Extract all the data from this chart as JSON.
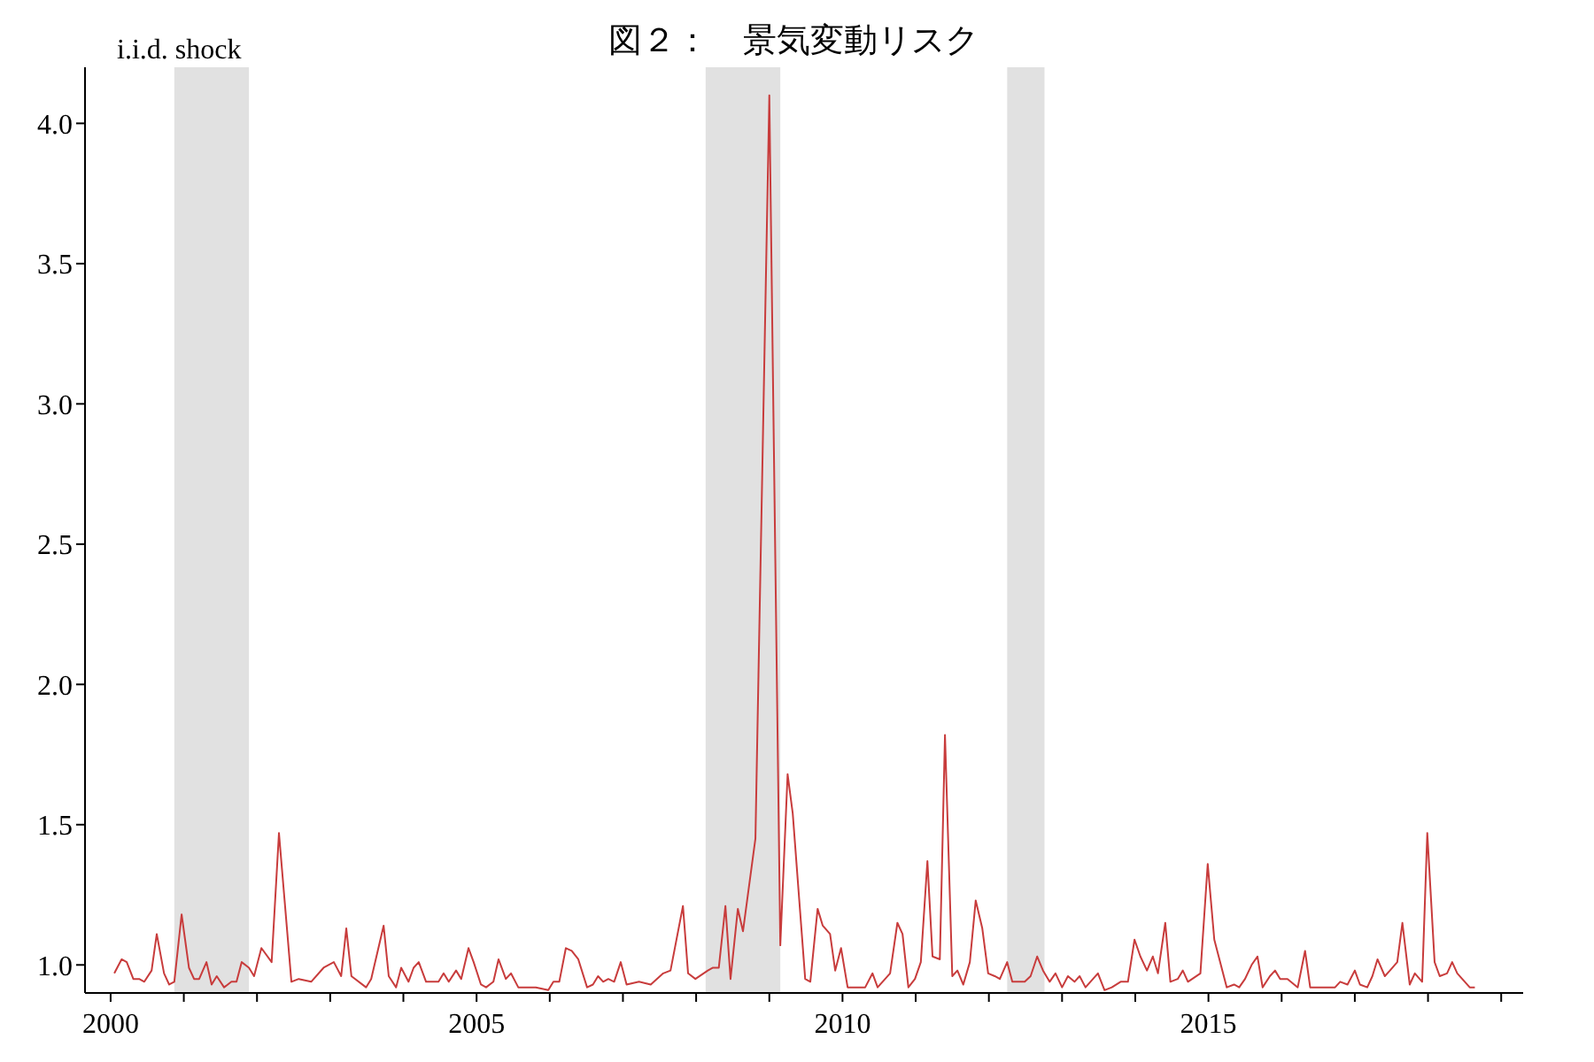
{
  "chart_data": {
    "type": "line",
    "title": "図２：　景気変動リスク",
    "ylabel": "i.i.d. shock",
    "xlim": [
      1999.65,
      2019.3
    ],
    "xticks": [
      2000,
      {
        "value": 2001,
        "label": null
      },
      {
        "value": 2002,
        "label": null
      },
      {
        "value": 2003,
        "label": null
      },
      {
        "value": 2004,
        "label": null
      },
      2005,
      {
        "value": 2006,
        "label": null
      },
      {
        "value": 2007,
        "label": null
      },
      {
        "value": 2008,
        "label": null
      },
      {
        "value": 2009,
        "label": null
      },
      2010,
      {
        "value": 2011,
        "label": null
      },
      {
        "value": 2012,
        "label": null
      },
      {
        "value": 2013,
        "label": null
      },
      {
        "value": 2014,
        "label": null
      },
      2015,
      {
        "value": 2016,
        "label": null
      },
      {
        "value": 2017,
        "label": null
      },
      {
        "value": 2018,
        "label": null
      },
      {
        "value": 2019,
        "label": null
      }
    ],
    "ylim": [
      0.9,
      4.2
    ],
    "yticks": [
      {
        "value": 1,
        "label": "1.0"
      },
      {
        "value": 1.5,
        "label": "1.5"
      },
      {
        "value": 2,
        "label": "2.0"
      },
      {
        "value": 2.5,
        "label": "2.5"
      },
      {
        "value": 3,
        "label": "3.0"
      },
      {
        "value": 3.5,
        "label": "3.5"
      },
      {
        "value": 4,
        "label": "4.0"
      }
    ],
    "grid": false,
    "legend": false,
    "marker": "none",
    "line_style": "solid",
    "bands": [
      {
        "axis": "x",
        "from": 2000.87,
        "to": 2001.89,
        "color": "#d9d9d9"
      },
      {
        "axis": "x",
        "from": 2008.13,
        "to": 2009.15,
        "color": "#d9d9d9"
      },
      {
        "axis": "x",
        "from": 2012.25,
        "to": 2012.76,
        "color": "#d9d9d9"
      }
    ],
    "x": [
      2000.05,
      2000.15,
      2000.22,
      2000.31,
      2000.39,
      2000.46,
      2000.56,
      2000.63,
      2000.73,
      2000.8,
      2000.87,
      2000.97,
      2001.07,
      2001.14,
      2001.21,
      2001.31,
      2001.38,
      2001.45,
      2001.55,
      2001.65,
      2001.72,
      2001.79,
      2001.89,
      2001.96,
      2002.06,
      2002.2,
      2002.3,
      2002.47,
      2002.57,
      2002.74,
      2002.91,
      2003.05,
      2003.15,
      2003.22,
      2003.29,
      2003.49,
      2003.56,
      2003.73,
      2003.8,
      2003.9,
      2003.97,
      2004.07,
      2004.14,
      2004.21,
      2004.31,
      2004.48,
      2004.55,
      2004.62,
      2004.72,
      2004.79,
      2004.89,
      2004.96,
      2005.06,
      2005.13,
      2005.23,
      2005.3,
      2005.4,
      2005.47,
      2005.57,
      2005.81,
      2005.98,
      2006.05,
      2006.13,
      2006.22,
      2006.3,
      2006.39,
      2006.51,
      2006.59,
      2006.66,
      2006.73,
      2006.8,
      2006.88,
      2006.97,
      2007.05,
      2007.22,
      2007.38,
      2007.55,
      2007.65,
      2007.82,
      2007.89,
      2007.99,
      2008.16,
      2008.23,
      2008.31,
      2008.4,
      2008.47,
      2008.57,
      2008.64,
      2008.81,
      2009.0,
      2009.15,
      2009.25,
      2009.32,
      2009.49,
      2009.56,
      2009.66,
      2009.73,
      2009.83,
      2009.9,
      2009.98,
      2010.07,
      2010.24,
      2010.31,
      2010.41,
      2010.48,
      2010.65,
      2010.75,
      2010.82,
      2010.9,
      2010.99,
      2011.07,
      2011.16,
      2011.23,
      2011.33,
      2011.4,
      2011.5,
      2011.57,
      2011.65,
      2011.74,
      2011.82,
      2011.91,
      2011.99,
      2012.08,
      2012.15,
      2012.25,
      2012.32,
      2012.49,
      2012.57,
      2012.66,
      2012.74,
      2012.83,
      2012.91,
      2013.0,
      2013.08,
      2013.17,
      2013.24,
      2013.32,
      2013.49,
      2013.58,
      2013.68,
      2013.8,
      2013.9,
      2013.99,
      2014.07,
      2014.16,
      2014.24,
      2014.31,
      2014.41,
      2014.48,
      2014.58,
      2014.65,
      2014.72,
      2014.89,
      2014.99,
      2015.08,
      2015.25,
      2015.35,
      2015.42,
      2015.5,
      2015.59,
      2015.67,
      2015.74,
      2015.84,
      2015.91,
      2015.98,
      2016.08,
      2016.22,
      2016.32,
      2016.39,
      2016.49,
      2016.73,
      2016.8,
      2016.9,
      2017.0,
      2017.07,
      2017.17,
      2017.24,
      2017.31,
      2017.41,
      2017.48,
      2017.58,
      2017.65,
      2017.75,
      2017.82,
      2017.92,
      2017.99,
      2018.09,
      2018.16,
      2018.26,
      2018.33,
      2018.4,
      2018.57,
      2018.64
    ],
    "series": [
      {
        "color": "#c83c3c",
        "values": [
          0.97,
          1.02,
          1.01,
          0.95,
          0.95,
          0.94,
          0.98,
          1.11,
          0.97,
          0.93,
          0.94,
          1.18,
          0.99,
          0.95,
          0.95,
          1.01,
          0.93,
          0.96,
          0.92,
          0.94,
          0.94,
          1.01,
          0.99,
          0.96,
          1.06,
          1.01,
          1.47,
          0.94,
          0.95,
          0.94,
          0.99,
          1.01,
          0.96,
          1.13,
          0.96,
          0.92,
          0.95,
          1.14,
          0.96,
          0.92,
          0.99,
          0.94,
          0.99,
          1.01,
          0.94,
          0.94,
          0.97,
          0.94,
          0.98,
          0.95,
          1.06,
          1.01,
          0.93,
          0.92,
          0.94,
          1.02,
          0.95,
          0.97,
          0.92,
          0.92,
          0.91,
          0.94,
          0.94,
          1.06,
          1.05,
          1.02,
          0.92,
          0.93,
          0.96,
          0.94,
          0.95,
          0.94,
          1.01,
          0.93,
          0.94,
          0.93,
          0.97,
          0.98,
          1.21,
          0.97,
          0.95,
          0.98,
          0.99,
          0.99,
          1.21,
          0.95,
          1.2,
          1.12,
          1.45,
          4.1,
          1.07,
          1.68,
          1.54,
          0.95,
          0.94,
          1.2,
          1.14,
          1.11,
          0.98,
          1.06,
          0.92,
          0.92,
          0.92,
          0.97,
          0.92,
          0.97,
          1.15,
          1.11,
          0.92,
          0.95,
          1.01,
          1.37,
          1.03,
          1.02,
          1.82,
          0.96,
          0.98,
          0.93,
          1.01,
          1.23,
          1.13,
          0.97,
          0.96,
          0.95,
          1.01,
          0.94,
          0.94,
          0.96,
          1.03,
          0.98,
          0.94,
          0.97,
          0.92,
          0.96,
          0.94,
          0.96,
          0.92,
          0.97,
          0.91,
          0.92,
          0.94,
          0.94,
          1.09,
          1.03,
          0.98,
          1.03,
          0.97,
          1.15,
          0.94,
          0.95,
          0.98,
          0.94,
          0.97,
          1.36,
          1.09,
          0.92,
          0.93,
          0.92,
          0.95,
          1.0,
          1.03,
          0.92,
          0.96,
          0.98,
          0.95,
          0.95,
          0.92,
          1.05,
          0.92,
          0.92,
          0.92,
          0.94,
          0.93,
          0.98,
          0.93,
          0.92,
          0.96,
          1.02,
          0.96,
          0.98,
          1.01,
          1.15,
          0.93,
          0.97,
          0.94,
          1.47,
          1.01,
          0.96,
          0.97,
          1.01,
          0.97,
          0.92,
          0.92
        ]
      }
    ]
  }
}
